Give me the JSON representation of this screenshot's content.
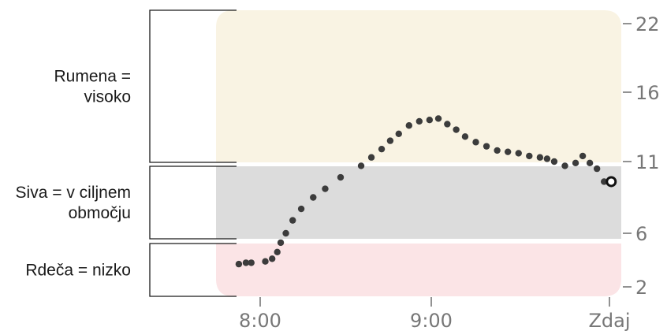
{
  "chart_data": {
    "type": "scatter",
    "bands": [
      {
        "name": "high",
        "label_lines": [
          "Rumena =",
          "visoko"
        ],
        "y_range": [
          11,
          22
        ],
        "color": "#f9f3e3"
      },
      {
        "name": "target",
        "label_lines": [
          "Siva = v ciljnem",
          "območju"
        ],
        "y_range": [
          5.5,
          11
        ],
        "color": "#dcdcdc"
      },
      {
        "name": "low",
        "label_lines": [
          "Rdeča = nizko"
        ],
        "y_range": [
          2,
          5.5
        ],
        "color": "#fbe4e6"
      }
    ],
    "y_ticks": [
      "22",
      "16",
      "11",
      "6",
      "2"
    ],
    "x_ticks": [
      "8:00",
      "9:00",
      "Zdaj"
    ],
    "xlim": [
      7.5,
      10.0
    ],
    "ylim": [
      2,
      22
    ],
    "x_unit": "hour of day",
    "series": [
      {
        "x": [
          7.92,
          7.96,
          7.99,
          8.03,
          8.07,
          8.1,
          8.12,
          8.15,
          8.19,
          8.24,
          8.31,
          8.38,
          8.47,
          8.59,
          8.65,
          8.71,
          8.76,
          8.81,
          8.87,
          8.93,
          8.99,
          9.04,
          9.09,
          9.14,
          9.19,
          9.25,
          9.31,
          9.37,
          9.43,
          9.49,
          9.55,
          9.61,
          9.65,
          9.69,
          9.75,
          9.81,
          9.85,
          9.89,
          9.93,
          9.97
        ],
        "y": [
          3.7,
          3.8,
          3.8,
          3.9,
          4.1,
          4.6,
          5.3,
          6.0,
          6.9,
          7.7,
          8.5,
          9.1,
          9.9,
          10.7,
          11.3,
          11.9,
          12.5,
          13.0,
          13.6,
          13.9,
          14.0,
          14.1,
          13.7,
          13.3,
          12.8,
          12.4,
          12.1,
          11.8,
          11.7,
          11.6,
          11.4,
          11.3,
          11.2,
          11.0,
          10.7,
          10.9,
          11.4,
          10.9,
          10.5,
          9.6
        ],
        "color": "#3c3c3c",
        "current": {
          "x": 10.01,
          "y": 9.6
        }
      }
    ]
  }
}
